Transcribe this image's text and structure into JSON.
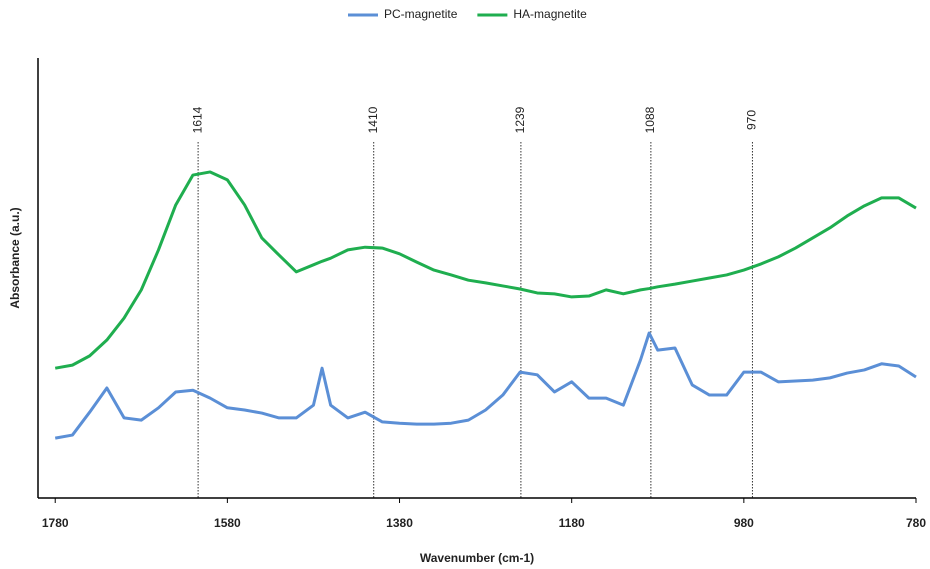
{
  "chart_data": {
    "type": "line",
    "xlabel": "Wavenumber (cm-1)",
    "ylabel": "Absorbance (a.u.)",
    "x": [
      1780,
      1760,
      1740,
      1720,
      1700,
      1680,
      1660,
      1640,
      1620,
      1600,
      1580,
      1560,
      1540,
      1520,
      1500,
      1480,
      1470,
      1460,
      1440,
      1420,
      1400,
      1380,
      1360,
      1340,
      1320,
      1300,
      1280,
      1260,
      1240,
      1220,
      1200,
      1180,
      1160,
      1140,
      1120,
      1100,
      1090,
      1080,
      1060,
      1040,
      1020,
      1000,
      980,
      960,
      940,
      920,
      900,
      880,
      860,
      840,
      820,
      800,
      780
    ],
    "series": [
      {
        "name": "PC-magnetite",
        "color": "#5b8fd6",
        "values": [
          13.6,
          14.3,
          19.5,
          25.0,
          18.2,
          17.7,
          20.5,
          24.1,
          24.5,
          22.7,
          20.5,
          20.0,
          19.3,
          18.2,
          18.2,
          21.1,
          29.5,
          21.1,
          18.2,
          19.5,
          17.3,
          17.0,
          16.8,
          16.8,
          17.0,
          17.7,
          20.0,
          23.4,
          28.6,
          28.0,
          24.1,
          26.4,
          22.7,
          22.7,
          21.1,
          31.4,
          37.5,
          33.6,
          34.1,
          25.7,
          23.4,
          23.4,
          28.6,
          28.6,
          26.4,
          26.6,
          26.8,
          27.3,
          28.4,
          29.1,
          30.5,
          30.0,
          27.5
        ]
      },
      {
        "name": "HA-magnetite",
        "color": "#1fae4f",
        "values": [
          29.5,
          30.2,
          32.3,
          35.9,
          40.9,
          47.3,
          56.4,
          66.6,
          73.4,
          74.1,
          72.3,
          66.6,
          59.1,
          55.2,
          51.4,
          53.0,
          53.8,
          54.5,
          56.4,
          57.0,
          56.8,
          55.5,
          53.6,
          51.8,
          50.7,
          49.5,
          48.9,
          48.2,
          47.5,
          46.6,
          46.4,
          45.7,
          45.9,
          47.3,
          46.4,
          47.3,
          47.6,
          48.0,
          48.6,
          49.3,
          50.0,
          50.7,
          51.8,
          53.2,
          54.8,
          56.8,
          59.1,
          61.4,
          64.1,
          66.4,
          68.2,
          68.2,
          65.9
        ]
      }
    ],
    "xlim": [
      1800,
      780
    ],
    "xticks": [
      1780,
      1580,
      1380,
      1180,
      980,
      780
    ],
    "ylim": [
      0,
      100
    ],
    "peak_lines": [
      1614,
      1410,
      1239,
      1088,
      970
    ],
    "legend": "top"
  }
}
